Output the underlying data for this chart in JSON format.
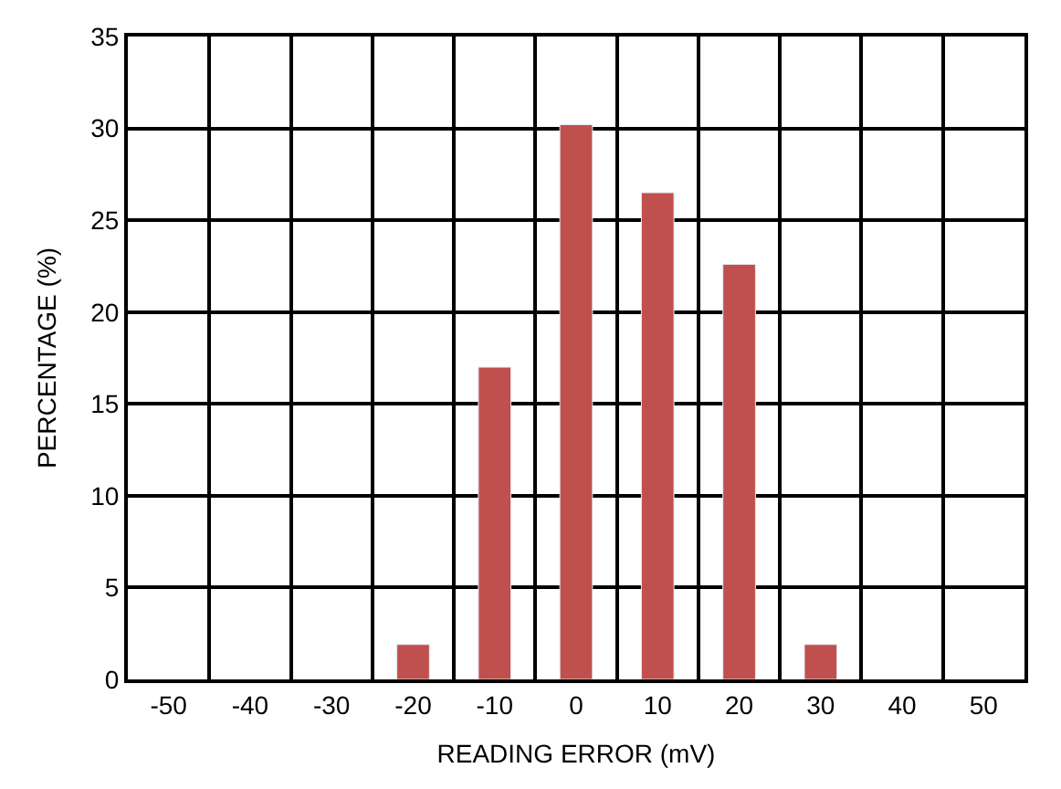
{
  "chart_data": {
    "type": "bar",
    "xlabel": "READING ERROR (mV)",
    "ylabel": "PERCENTAGE (%)",
    "categories": [
      "-50",
      "-40",
      "-30",
      "-20",
      "-10",
      "0",
      "10",
      "20",
      "30",
      "40",
      "50"
    ],
    "values": [
      null,
      null,
      null,
      1.9,
      17.0,
      30.2,
      26.5,
      22.6,
      1.9,
      null,
      null
    ],
    "color": "#c0504d",
    "ylim": [
      0,
      35
    ],
    "yticks": [
      0,
      5,
      10,
      15,
      20,
      25,
      30,
      35
    ],
    "grid": true
  }
}
